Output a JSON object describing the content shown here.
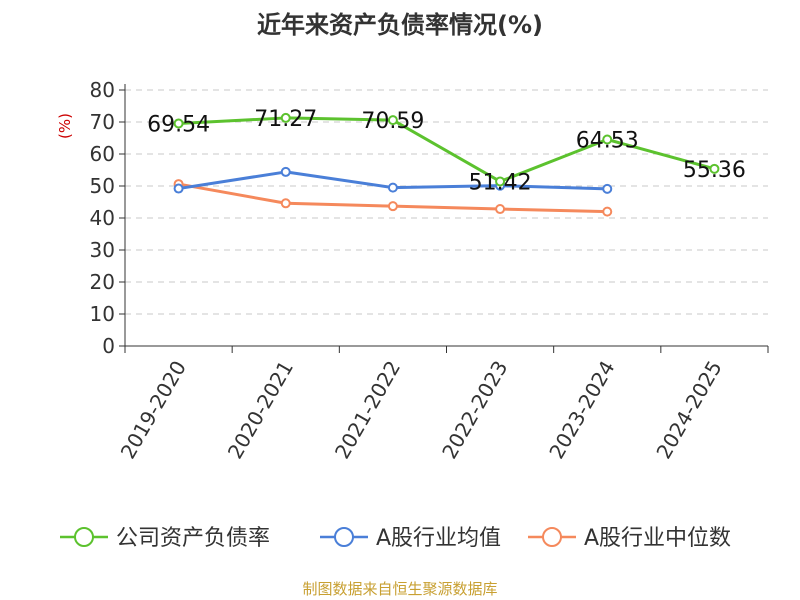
{
  "chart_data": {
    "type": "line",
    "title": "近年来资产负债率情况(%)",
    "ylabel": "(%)",
    "xlabel": "",
    "categories": [
      "2019-2020",
      "2020-2021",
      "2021-2022",
      "2022-2023",
      "2023-2024",
      "2024-2025"
    ],
    "ylim": [
      0,
      80
    ],
    "yticks": [
      0,
      10,
      20,
      30,
      40,
      50,
      60,
      70,
      80
    ],
    "grid": true,
    "legend_position": "bottom",
    "series": [
      {
        "name": "公司资产负债率",
        "color": "#5cc22e",
        "values": [
          69.54,
          71.27,
          70.59,
          51.42,
          64.53,
          55.36
        ],
        "labels": [
          "69.54",
          "71.27",
          "70.59",
          "51.42",
          "64.53",
          "55.36"
        ]
      },
      {
        "name": "A股行业均值",
        "color": "#4a7fd8",
        "values": [
          49.2,
          54.4,
          49.5,
          50.1,
          49.1,
          null
        ]
      },
      {
        "name": "A股行业中位数",
        "color": "#f5895c",
        "values": [
          50.6,
          44.6,
          43.7,
          42.8,
          42.0,
          null
        ]
      }
    ]
  },
  "source": "制图数据来自恒生聚源数据库"
}
